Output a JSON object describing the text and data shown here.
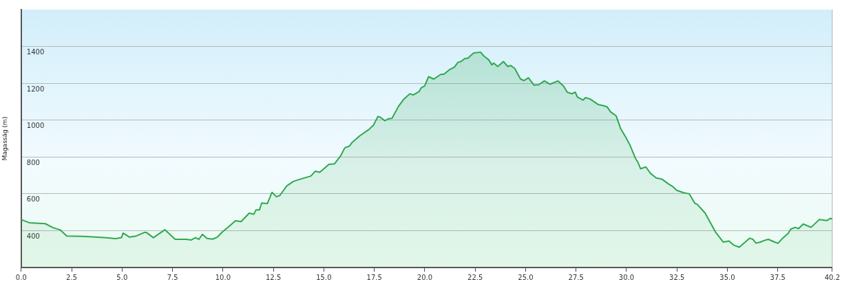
{
  "chart_data": {
    "type": "area",
    "ylabel": "Magasság (m)",
    "x": [
      0,
      0.4,
      1.19,
      1.58,
      1.92,
      2.26,
      3.1,
      4.12,
      4.69,
      4.97,
      5.05,
      5.37,
      5.7,
      6.1,
      6.21,
      6.55,
      7.12,
      7.63,
      8.19,
      8.42,
      8.64,
      8.81,
      8.98,
      9.21,
      9.49,
      9.72,
      10.0,
      10.34,
      10.62,
      10.9,
      11.3,
      11.53,
      11.64,
      11.81,
      11.92,
      12.2,
      12.43,
      12.65,
      12.82,
      13.16,
      13.5,
      13.96,
      14.35,
      14.58,
      14.8,
      15.25,
      15.53,
      15.82,
      16.04,
      16.27,
      16.39,
      16.78,
      17.23,
      17.46,
      17.68,
      17.8,
      18.02,
      18.19,
      18.38,
      18.7,
      18.98,
      19.26,
      19.43,
      19.72,
      19.83,
      20.0,
      20.19,
      20.45,
      20.79,
      20.96,
      21.24,
      21.47,
      21.64,
      21.81,
      21.98,
      22.15,
      22.26,
      22.43,
      22.77,
      22.94,
      23.17,
      23.33,
      23.42,
      23.62,
      23.9,
      24.12,
      24.26,
      24.46,
      24.75,
      24.92,
      25.14,
      25.42,
      25.65,
      25.93,
      26.21,
      26.61,
      26.89,
      27.06,
      27.29,
      27.46,
      27.57,
      27.85,
      27.97,
      28.19,
      28.59,
      28.87,
      29.04,
      29.21,
      29.49,
      29.72,
      29.94,
      30.17,
      30.45,
      30.56,
      30.7,
      30.96,
      31.19,
      31.47,
      31.75,
      32.09,
      32.32,
      32.49,
      32.83,
      33.11,
      33.39,
      33.5,
      33.9,
      34.41,
      34.8,
      35.08,
      35.31,
      35.59,
      36.1,
      36.27,
      36.42,
      36.61,
      36.84,
      37.03,
      37.34,
      37.51,
      37.74,
      38.02,
      38.14,
      38.36,
      38.53,
      38.76,
      39.15,
      39.55,
      39.94,
      40.11,
      40.2
    ],
    "series": [
      {
        "color": "#2ea84f",
        "values": [
          460,
          443,
          438,
          416,
          405,
          371,
          369,
          362,
          357,
          362,
          387,
          365,
          371,
          390,
          390,
          362,
          405,
          353,
          353,
          349,
          362,
          353,
          380,
          358,
          354,
          365,
          396,
          427,
          454,
          449,
          495,
          489,
          513,
          513,
          550,
          547,
          608,
          584,
          591,
          643,
          668,
          684,
          696,
          723,
          717,
          760,
          763,
          804,
          850,
          859,
          878,
          915,
          949,
          973,
          1020,
          1016,
          997,
          1007,
          1010,
          1075,
          1116,
          1143,
          1137,
          1155,
          1176,
          1186,
          1236,
          1223,
          1248,
          1250,
          1275,
          1288,
          1313,
          1319,
          1334,
          1337,
          1349,
          1365,
          1369,
          1347,
          1328,
          1300,
          1310,
          1291,
          1318,
          1291,
          1297,
          1281,
          1223,
          1215,
          1230,
          1190,
          1192,
          1213,
          1195,
          1213,
          1184,
          1152,
          1143,
          1152,
          1125,
          1109,
          1122,
          1115,
          1085,
          1078,
          1072,
          1045,
          1023,
          952,
          912,
          865,
          791,
          773,
          736,
          746,
          711,
          686,
          680,
          653,
          637,
          619,
          606,
          600,
          548,
          544,
          495,
          393,
          338,
          344,
          322,
          310,
          359,
          353,
          332,
          337,
          347,
          353,
          338,
          331,
          359,
          386,
          408,
          418,
          411,
          436,
          418,
          460,
          455,
          467,
          463
        ]
      }
    ],
    "xlim": [
      0,
      40.2
    ],
    "xticks": [
      {
        "value": 0,
        "label": "0.0"
      },
      2.5,
      {
        "value": 5,
        "label": "5.0"
      },
      7.5,
      {
        "value": 10,
        "label": "10.0"
      },
      12.5,
      {
        "value": 15,
        "label": "15.0"
      },
      17.5,
      {
        "value": 20,
        "label": "20.0"
      },
      22.5,
      {
        "value": 25,
        "label": "25.0"
      },
      27.5,
      {
        "value": 30,
        "label": "30.0"
      },
      32.5,
      {
        "value": 35,
        "label": "35.0"
      },
      37.5,
      40.2
    ],
    "ylim": [
      200,
      1600
    ],
    "yticks": [
      400,
      600,
      800,
      1000,
      1200,
      1400
    ],
    "grid": "y",
    "legend": false,
    "marker": "none",
    "line_style": "solid"
  }
}
